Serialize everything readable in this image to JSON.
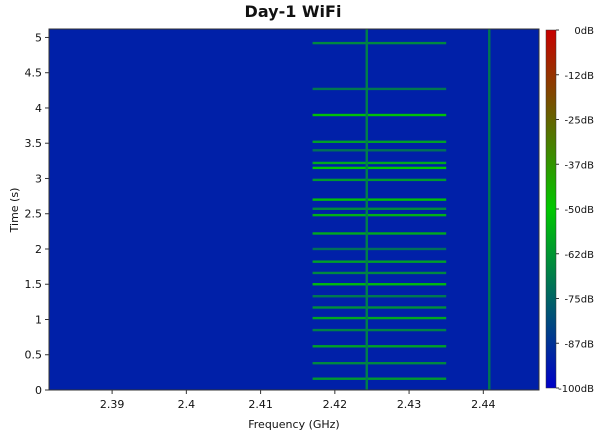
{
  "chart_data": {
    "type": "heatmap",
    "title": "Day-1 WiFi",
    "xlabel": "Frequency (GHz)",
    "ylabel": "Time (s)",
    "xlim": [
      2.3815,
      2.4475
    ],
    "ylim": [
      0,
      5.12
    ],
    "x_ticks": [
      "2.39",
      "2.4",
      "2.41",
      "2.42",
      "2.43",
      "2.44"
    ],
    "x_tick_values": [
      2.39,
      2.4,
      2.41,
      2.42,
      2.43,
      2.44
    ],
    "y_ticks": [
      "0",
      "0.5",
      "1",
      "1.5",
      "2",
      "2.5",
      "3",
      "3.5",
      "4",
      "4.5",
      "5"
    ],
    "y_tick_values": [
      0,
      0.5,
      1,
      1.5,
      2,
      2.5,
      3,
      3.5,
      4,
      4.5,
      5
    ],
    "colorbar": {
      "labels": [
        "0dB",
        "-12dB",
        "-25dB",
        "-37dB",
        "-50dB",
        "-62dB",
        "-75dB",
        "-87dB",
        "-100dB"
      ],
      "values": [
        0,
        -12.5,
        -25,
        -37.5,
        -50,
        -62.5,
        -75,
        -87.5,
        -100
      ],
      "range": [
        -100,
        0
      ],
      "colors": [
        "#0000c8",
        "#00c800",
        "#c80000"
      ]
    },
    "background_level_db": -92,
    "constant_lines": [
      {
        "freq": 2.4243,
        "level_db": -68
      },
      {
        "freq": 2.4408,
        "level_db": -70
      }
    ],
    "bursts": {
      "freq_range": [
        2.417,
        2.435
      ],
      "events": [
        {
          "time": 0.16,
          "level_db": -62
        },
        {
          "time": 0.38,
          "level_db": -66
        },
        {
          "time": 0.62,
          "level_db": -60
        },
        {
          "time": 0.85,
          "level_db": -68
        },
        {
          "time": 1.02,
          "level_db": -58
        },
        {
          "time": 1.17,
          "level_db": -64
        },
        {
          "time": 1.33,
          "level_db": -70
        },
        {
          "time": 1.5,
          "level_db": -54
        },
        {
          "time": 1.66,
          "level_db": -66
        },
        {
          "time": 1.82,
          "level_db": -60
        },
        {
          "time": 2.0,
          "level_db": -72
        },
        {
          "time": 2.22,
          "level_db": -58
        },
        {
          "time": 2.48,
          "level_db": -56
        },
        {
          "time": 2.57,
          "level_db": -66
        },
        {
          "time": 2.7,
          "level_db": -52
        },
        {
          "time": 2.98,
          "level_db": -62
        },
        {
          "time": 3.15,
          "level_db": -50
        },
        {
          "time": 3.22,
          "level_db": -58
        },
        {
          "time": 3.4,
          "level_db": -72
        },
        {
          "time": 3.52,
          "level_db": -60
        },
        {
          "time": 3.9,
          "level_db": -52
        },
        {
          "time": 4.27,
          "level_db": -70
        },
        {
          "time": 4.92,
          "level_db": -66
        }
      ]
    }
  }
}
